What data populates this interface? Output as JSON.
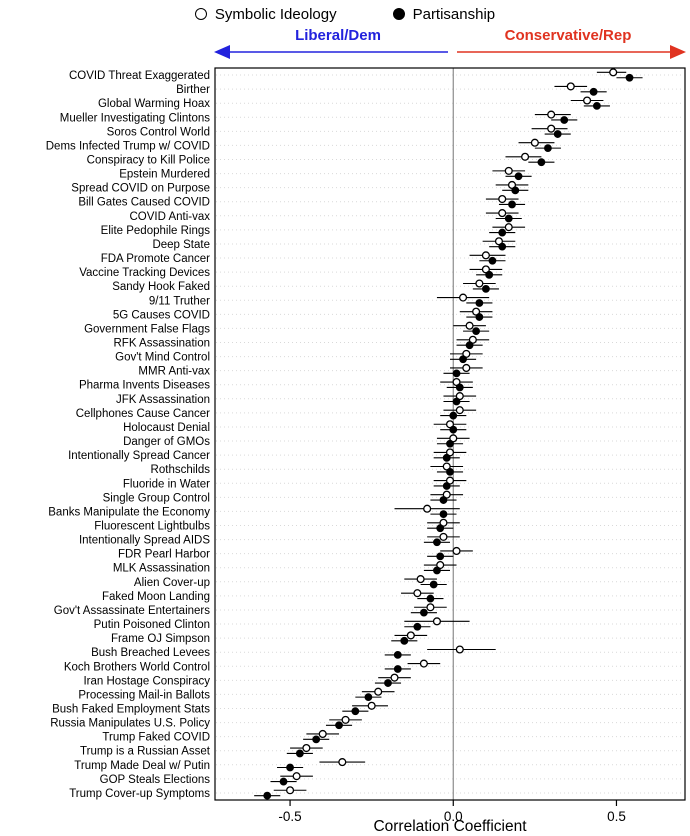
{
  "legend": {
    "symbolic_label": "Symbolic Ideology",
    "partisanship_label": "Partisanship"
  },
  "arrows": {
    "left_label": "Liberal/Dem",
    "left_color": "#2222dd",
    "right_label": "Conservative/Rep",
    "right_color": "#e03320"
  },
  "chart_data": {
    "type": "scatter",
    "title": "",
    "xlabel": "Correlation Coefficient",
    "ylabel": "",
    "xlim": [
      -0.73,
      0.71
    ],
    "xticks": [
      -0.5,
      0.0,
      0.5
    ],
    "xtick_labels": [
      "-0.5",
      "0.0",
      "0.5"
    ],
    "grid": "dotted-horizontal",
    "zero_line": true,
    "legend_position": "top",
    "series_names": [
      "Symbolic Ideology",
      "Partisanship"
    ],
    "note": "each row: sym = Symbolic Ideology [ci_low, estimate, ci_high] (open circle), part = Partisanship [ci_low, estimate, ci_high] (filled circle)",
    "rows": [
      {
        "label": "COVID Threat Exaggerated",
        "sym": [
          0.44,
          0.49,
          0.53
        ],
        "part": [
          0.5,
          0.54,
          0.58
        ]
      },
      {
        "label": "Birther",
        "sym": [
          0.31,
          0.36,
          0.41
        ],
        "part": [
          0.39,
          0.43,
          0.47
        ]
      },
      {
        "label": "Global Warming Hoax",
        "sym": [
          0.36,
          0.41,
          0.46
        ],
        "part": [
          0.4,
          0.44,
          0.48
        ]
      },
      {
        "label": "Mueller Investigating Clintons",
        "sym": [
          0.25,
          0.3,
          0.36
        ],
        "part": [
          0.3,
          0.34,
          0.38
        ]
      },
      {
        "label": "Soros Control World",
        "sym": [
          0.24,
          0.3,
          0.35
        ],
        "part": [
          0.28,
          0.32,
          0.36
        ]
      },
      {
        "label": "Dems Infected Trump w/ COVID",
        "sym": [
          0.2,
          0.25,
          0.31
        ],
        "part": [
          0.25,
          0.29,
          0.33
        ]
      },
      {
        "label": "Conspiracy to Kill Police",
        "sym": [
          0.16,
          0.22,
          0.27
        ],
        "part": [
          0.23,
          0.27,
          0.31
        ]
      },
      {
        "label": "Epstein Murdered",
        "sym": [
          0.12,
          0.17,
          0.22
        ],
        "part": [
          0.16,
          0.2,
          0.24
        ]
      },
      {
        "label": "Spread COVID on Purpose",
        "sym": [
          0.13,
          0.18,
          0.23
        ],
        "part": [
          0.15,
          0.19,
          0.23
        ]
      },
      {
        "label": "Bill Gates Caused COVID",
        "sym": [
          0.1,
          0.15,
          0.2
        ],
        "part": [
          0.14,
          0.18,
          0.22
        ]
      },
      {
        "label": "COVID Anti-vax",
        "sym": [
          0.1,
          0.15,
          0.2
        ],
        "part": [
          0.13,
          0.17,
          0.21
        ]
      },
      {
        "label": "Elite Pedophile Rings",
        "sym": [
          0.12,
          0.17,
          0.22
        ],
        "part": [
          0.11,
          0.15,
          0.19
        ]
      },
      {
        "label": "Deep State",
        "sym": [
          0.09,
          0.14,
          0.19
        ],
        "part": [
          0.11,
          0.15,
          0.19
        ]
      },
      {
        "label": "FDA Promote Cancer",
        "sym": [
          0.05,
          0.1,
          0.16
        ],
        "part": [
          0.08,
          0.12,
          0.16
        ]
      },
      {
        "label": "Vaccine Tracking Devices",
        "sym": [
          0.05,
          0.1,
          0.15
        ],
        "part": [
          0.07,
          0.11,
          0.15
        ]
      },
      {
        "label": "Sandy Hook Faked",
        "sym": [
          0.03,
          0.08,
          0.13
        ],
        "part": [
          0.06,
          0.1,
          0.14
        ]
      },
      {
        "label": "9/11 Truther",
        "sym": [
          -0.05,
          0.03,
          0.11
        ],
        "part": [
          0.04,
          0.08,
          0.12
        ]
      },
      {
        "label": "5G Causes COVID",
        "sym": [
          0.02,
          0.07,
          0.12
        ],
        "part": [
          0.04,
          0.08,
          0.12
        ]
      },
      {
        "label": "Government False Flags",
        "sym": [
          0.0,
          0.05,
          0.1
        ],
        "part": [
          0.03,
          0.07,
          0.11
        ]
      },
      {
        "label": "RFK Assassination",
        "sym": [
          0.01,
          0.06,
          0.11
        ],
        "part": [
          0.01,
          0.05,
          0.09
        ]
      },
      {
        "label": "Gov't Mind Control",
        "sym": [
          -0.01,
          0.04,
          0.09
        ],
        "part": [
          -0.01,
          0.03,
          0.07
        ]
      },
      {
        "label": "MMR Anti-vax",
        "sym": [
          -0.01,
          0.04,
          0.09
        ],
        "part": [
          -0.03,
          0.01,
          0.05
        ]
      },
      {
        "label": "Pharma Invents Diseases",
        "sym": [
          -0.04,
          0.01,
          0.06
        ],
        "part": [
          -0.02,
          0.02,
          0.06
        ]
      },
      {
        "label": "JFK Assassination",
        "sym": [
          -0.03,
          0.02,
          0.07
        ],
        "part": [
          -0.03,
          0.01,
          0.05
        ]
      },
      {
        "label": "Cellphones Cause Cancer",
        "sym": [
          -0.03,
          0.02,
          0.07
        ],
        "part": [
          -0.04,
          0.0,
          0.04
        ]
      },
      {
        "label": "Holocaust Denial",
        "sym": [
          -0.06,
          -0.01,
          0.04
        ],
        "part": [
          -0.04,
          0.0,
          0.04
        ]
      },
      {
        "label": "Danger of GMOs",
        "sym": [
          -0.05,
          0.0,
          0.05
        ],
        "part": [
          -0.05,
          -0.01,
          0.03
        ]
      },
      {
        "label": "Intentionally Spread Cancer",
        "sym": [
          -0.06,
          -0.01,
          0.04
        ],
        "part": [
          -0.06,
          -0.02,
          0.02
        ]
      },
      {
        "label": "Rothschilds",
        "sym": [
          -0.07,
          -0.02,
          0.03
        ],
        "part": [
          -0.05,
          -0.01,
          0.03
        ]
      },
      {
        "label": "Fluoride in Water",
        "sym": [
          -0.06,
          -0.01,
          0.04
        ],
        "part": [
          -0.06,
          -0.02,
          0.02
        ]
      },
      {
        "label": "Single Group Control",
        "sym": [
          -0.07,
          -0.02,
          0.03
        ],
        "part": [
          -0.07,
          -0.03,
          0.01
        ]
      },
      {
        "label": "Banks Manipulate the Economy",
        "sym": [
          -0.18,
          -0.08,
          0.02
        ],
        "part": [
          -0.07,
          -0.03,
          0.01
        ]
      },
      {
        "label": "Fluorescent Lightbulbs",
        "sym": [
          -0.08,
          -0.03,
          0.02
        ],
        "part": [
          -0.08,
          -0.04,
          0.0
        ]
      },
      {
        "label": "Intentionally Spread AIDS",
        "sym": [
          -0.08,
          -0.03,
          0.02
        ],
        "part": [
          -0.09,
          -0.05,
          -0.01
        ]
      },
      {
        "label": "FDR Pearl Harbor",
        "sym": [
          -0.04,
          0.01,
          0.06
        ],
        "part": [
          -0.08,
          -0.04,
          0.0
        ]
      },
      {
        "label": "MLK Assassination",
        "sym": [
          -0.09,
          -0.04,
          0.01
        ],
        "part": [
          -0.09,
          -0.05,
          -0.01
        ]
      },
      {
        "label": "Alien Cover-up",
        "sym": [
          -0.15,
          -0.1,
          -0.05
        ],
        "part": [
          -0.1,
          -0.06,
          -0.02
        ]
      },
      {
        "label": "Faked Moon Landing",
        "sym": [
          -0.16,
          -0.11,
          -0.06
        ],
        "part": [
          -0.11,
          -0.07,
          -0.03
        ]
      },
      {
        "label": "Gov't Assassinate Entertainers",
        "sym": [
          -0.12,
          -0.07,
          -0.02
        ],
        "part": [
          -0.13,
          -0.09,
          -0.05
        ]
      },
      {
        "label": "Putin Poisoned Clinton",
        "sym": [
          -0.15,
          -0.05,
          0.05
        ],
        "part": [
          -0.15,
          -0.11,
          -0.07
        ]
      },
      {
        "label": "Frame OJ Simpson",
        "sym": [
          -0.18,
          -0.13,
          -0.08
        ],
        "part": [
          -0.19,
          -0.15,
          -0.11
        ]
      },
      {
        "label": "Bush Breached Levees",
        "sym": [
          -0.08,
          0.02,
          0.13
        ],
        "part": [
          -0.21,
          -0.17,
          -0.13
        ]
      },
      {
        "label": "Koch Brothers World Control",
        "sym": [
          -0.14,
          -0.09,
          -0.04
        ],
        "part": [
          -0.21,
          -0.17,
          -0.13
        ]
      },
      {
        "label": "Iran Hostage Conspiracy",
        "sym": [
          -0.23,
          -0.18,
          -0.13
        ],
        "part": [
          -0.24,
          -0.2,
          -0.16
        ]
      },
      {
        "label": "Processing Mail-in Ballots",
        "sym": [
          -0.28,
          -0.23,
          -0.18
        ],
        "part": [
          -0.3,
          -0.26,
          -0.22
        ]
      },
      {
        "label": "Bush Faked Employment Stats",
        "sym": [
          -0.31,
          -0.25,
          -0.2
        ],
        "part": [
          -0.34,
          -0.3,
          -0.26
        ]
      },
      {
        "label": "Russia Manipulates U.S. Policy",
        "sym": [
          -0.38,
          -0.33,
          -0.28
        ],
        "part": [
          -0.39,
          -0.35,
          -0.31
        ]
      },
      {
        "label": "Trump Faked COVID",
        "sym": [
          -0.45,
          -0.4,
          -0.35
        ],
        "part": [
          -0.46,
          -0.42,
          -0.38
        ]
      },
      {
        "label": "Trump is a Russian Asset",
        "sym": [
          -0.5,
          -0.45,
          -0.4
        ],
        "part": [
          -0.51,
          -0.47,
          -0.43
        ]
      },
      {
        "label": "Trump Made Deal w/ Putin",
        "sym": [
          -0.41,
          -0.34,
          -0.27
        ],
        "part": [
          -0.54,
          -0.5,
          -0.46
        ]
      },
      {
        "label": "GOP Steals Elections",
        "sym": [
          -0.53,
          -0.48,
          -0.43
        ],
        "part": [
          -0.56,
          -0.52,
          -0.48
        ]
      },
      {
        "label": "Trump Cover-up Symptoms",
        "sym": [
          -0.55,
          -0.5,
          -0.45
        ],
        "part": [
          -0.61,
          -0.57,
          -0.53
        ]
      }
    ]
  }
}
